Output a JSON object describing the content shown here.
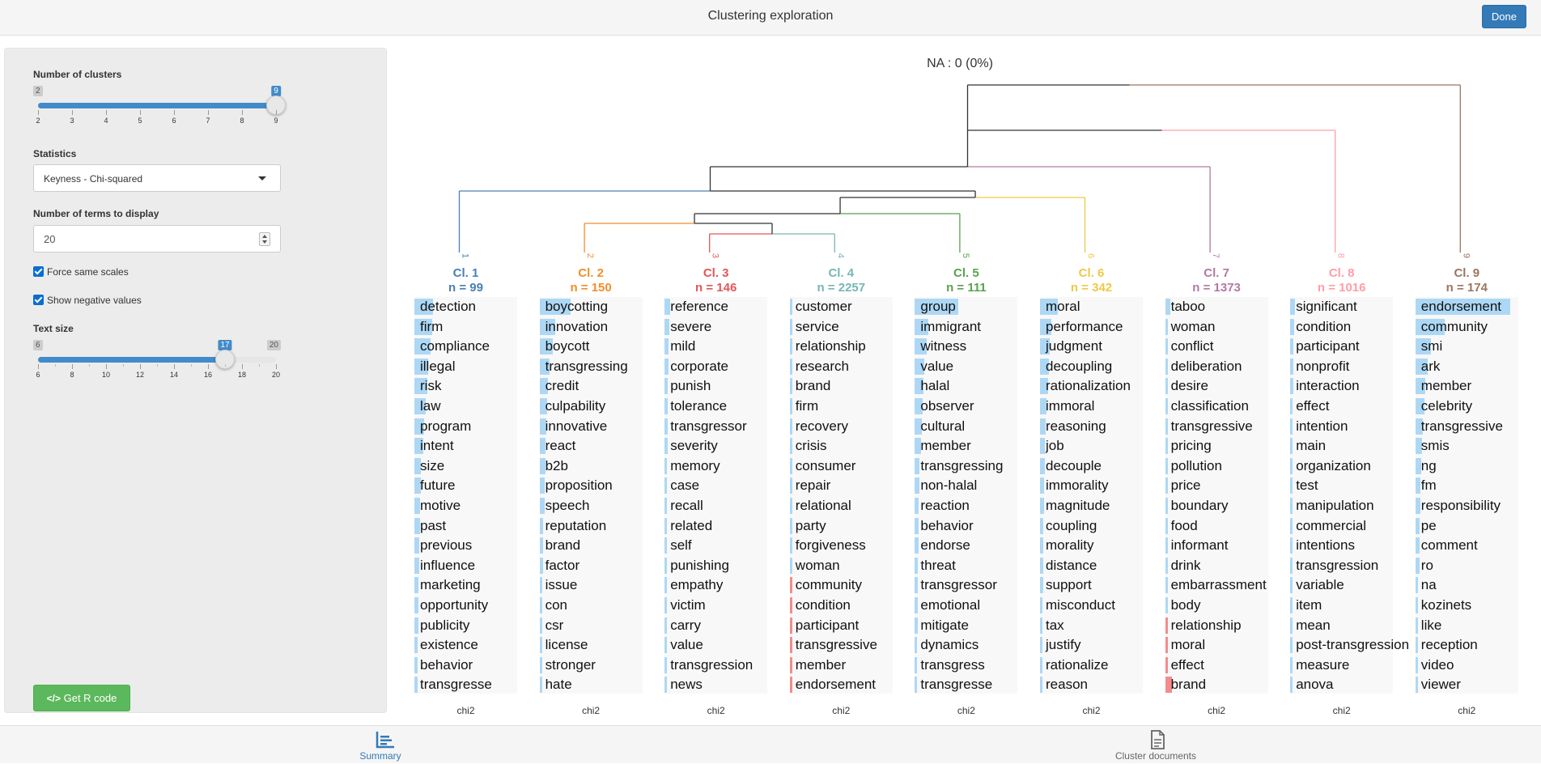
{
  "header": {
    "title": "Clustering exploration",
    "done_label": "Done"
  },
  "sidebar": {
    "num_clusters": {
      "label": "Number of clusters",
      "min": 2,
      "max": 9,
      "value": 9,
      "ticks": [
        "2",
        "3",
        "4",
        "5",
        "6",
        "7",
        "8",
        "9"
      ]
    },
    "statistics": {
      "label": "Statistics",
      "value": "Keyness - Chi-squared"
    },
    "num_terms": {
      "label": "Number of terms to display",
      "value": "20"
    },
    "force_same_scales": {
      "label": "Force same scales",
      "checked": true
    },
    "show_negative": {
      "label": "Show negative values",
      "checked": true
    },
    "text_size": {
      "label": "Text size",
      "min": 6,
      "max": 20,
      "value": 17,
      "ticks": [
        "6",
        "8",
        "10",
        "12",
        "14",
        "16",
        "18",
        "20"
      ]
    },
    "get_r_code_label": "Get R code"
  },
  "main": {
    "na_label": "NA : 0 (0%)",
    "leaf_labels": [
      "1",
      "2",
      "3",
      "4",
      "5",
      "6",
      "7",
      "8",
      "9"
    ],
    "stat_label": "chi2",
    "clusters": [
      {
        "title": "Cl. 1",
        "n": "n = 99",
        "color": "#4a7fb5",
        "terms": [
          "detection",
          "firm",
          "compliance",
          "illegal",
          "risk",
          "law",
          "program",
          "intent",
          "size",
          "future",
          "motive",
          "past",
          "previous",
          "influence",
          "marketing",
          "opportunity",
          "publicity",
          "existence",
          "behavior",
          "transgresse"
        ],
        "scores": [
          0.19,
          0.18,
          0.17,
          0.14,
          0.13,
          0.12,
          0.1,
          0.09,
          0.07,
          0.07,
          0.06,
          0.06,
          0.05,
          0.05,
          0.04,
          0.04,
          0.04,
          0.03,
          0.03,
          0.03
        ]
      },
      {
        "title": "Cl. 2",
        "n": "n = 150",
        "color": "#f28e2b",
        "terms": [
          "boycotting",
          "innovation",
          "boycott",
          "transgressing",
          "credit",
          "culpability",
          "innovative",
          "react",
          "b2b",
          "proposition",
          "speech",
          "reputation",
          "brand",
          "factor",
          "issue",
          "con",
          "csr",
          "license",
          "stronger",
          "hate"
        ],
        "scores": [
          0.32,
          0.16,
          0.14,
          0.1,
          0.09,
          0.08,
          0.07,
          0.06,
          0.06,
          0.05,
          0.05,
          0.04,
          0.04,
          0.04,
          0.03,
          0.03,
          0.03,
          0.03,
          0.02,
          0.02
        ]
      },
      {
        "title": "Cl. 3",
        "n": "n = 146",
        "color": "#e15759",
        "terms": [
          "reference",
          "severe",
          "mild",
          "corporate",
          "punish",
          "tolerance",
          "transgressor",
          "severity",
          "memory",
          "case",
          "recall",
          "related",
          "self",
          "punishing",
          "empathy",
          "victim",
          "carry",
          "value",
          "transgression",
          "news"
        ],
        "scores": [
          0.06,
          0.05,
          0.04,
          0.04,
          0.03,
          0.03,
          0.03,
          0.03,
          0.02,
          0.02,
          0.02,
          0.02,
          0.02,
          0.02,
          0.02,
          0.02,
          0.01,
          0.01,
          0.01,
          0.01
        ]
      },
      {
        "title": "Cl. 4",
        "n": "n = 2257",
        "color": "#76b7b2",
        "terms": [
          "customer",
          "service",
          "relationship",
          "research",
          "brand",
          "firm",
          "recovery",
          "crisis",
          "consumer",
          "repair",
          "relational",
          "party",
          "forgiveness",
          "woman",
          "community",
          "condition",
          "participant",
          "transgressive",
          "member",
          "endorsement"
        ],
        "scores": [
          0.02,
          0.015,
          0.015,
          0.012,
          0.012,
          0.01,
          0.01,
          0.01,
          0.01,
          0.008,
          0.008,
          0.008,
          0.008,
          0.008,
          -0.01,
          -0.01,
          -0.012,
          -0.012,
          -0.015,
          -0.015
        ]
      },
      {
        "title": "Cl. 5",
        "n": "n = 111",
        "color": "#59a14f",
        "terms": [
          "group",
          "immigrant",
          "witness",
          "value",
          "halal",
          "observer",
          "cultural",
          "member",
          "transgressing",
          "non-halal",
          "reaction",
          "behavior",
          "endorse",
          "threat",
          "transgressor",
          "emotional",
          "mitigate",
          "dynamics",
          "transgress",
          "transgresse"
        ],
        "scores": [
          0.45,
          0.14,
          0.12,
          0.1,
          0.09,
          0.08,
          0.07,
          0.06,
          0.05,
          0.05,
          0.04,
          0.04,
          0.04,
          0.03,
          0.03,
          0.03,
          0.03,
          0.02,
          0.02,
          0.02
        ]
      },
      {
        "title": "Cl. 6",
        "n": "n = 342",
        "color": "#edc948",
        "terms": [
          "moral",
          "performance",
          "judgment",
          "decoupling",
          "rationalization",
          "immoral",
          "reasoning",
          "job",
          "decouple",
          "immorality",
          "magnitude",
          "coupling",
          "morality",
          "distance",
          "support",
          "misconduct",
          "tax",
          "justify",
          "rationalize",
          "reason"
        ],
        "scores": [
          0.18,
          0.12,
          0.1,
          0.09,
          0.08,
          0.07,
          0.06,
          0.05,
          0.05,
          0.04,
          0.04,
          0.03,
          0.03,
          0.03,
          0.03,
          0.02,
          0.02,
          0.02,
          0.02,
          0.02
        ]
      },
      {
        "title": "Cl. 7",
        "n": "n = 1373",
        "color": "#b07aa1",
        "terms": [
          "taboo",
          "woman",
          "conflict",
          "deliberation",
          "desire",
          "classification",
          "transgressive",
          "pricing",
          "pollution",
          "price",
          "boundary",
          "food",
          "informant",
          "drink",
          "embarrassment",
          "body",
          "relationship",
          "moral",
          "effect",
          "brand"
        ],
        "scores": [
          0.05,
          0.03,
          0.025,
          0.02,
          0.02,
          0.02,
          0.018,
          0.015,
          0.015,
          0.013,
          0.012,
          0.012,
          0.01,
          0.01,
          0.01,
          0.008,
          -0.02,
          -0.025,
          -0.03,
          -0.07
        ]
      },
      {
        "title": "Cl. 8",
        "n": "n = 1016",
        "color": "#ff9da7",
        "terms": [
          "significant",
          "condition",
          "participant",
          "nonprofit",
          "interaction",
          "effect",
          "intention",
          "main",
          "organization",
          "test",
          "manipulation",
          "commercial",
          "intentions",
          "transgression",
          "variable",
          "item",
          "mean",
          "post-transgression",
          "measure",
          "anova"
        ],
        "scores": [
          0.05,
          0.04,
          0.035,
          0.03,
          0.03,
          0.025,
          0.025,
          0.022,
          0.02,
          0.02,
          0.018,
          0.018,
          0.016,
          0.016,
          0.015,
          0.015,
          0.014,
          0.014,
          0.013,
          0.013
        ]
      },
      {
        "title": "Cl. 9",
        "n": "n = 174",
        "color": "#9c755f",
        "terms": [
          "endorsement",
          "community",
          "smi",
          "ark",
          "member",
          "celebrity",
          "transgressive",
          "smis",
          "ng",
          "fm",
          "responsibility",
          "pe",
          "comment",
          "ro",
          "na",
          "kozinets",
          "like",
          "reception",
          "video",
          "viewer"
        ],
        "scores": [
          0.98,
          0.3,
          0.16,
          0.13,
          0.1,
          0.09,
          0.08,
          0.07,
          0.06,
          0.05,
          0.05,
          0.04,
          0.04,
          0.04,
          0.03,
          0.03,
          0.03,
          0.03,
          0.03,
          0.03
        ]
      }
    ]
  },
  "footer": {
    "summary_label": "Summary",
    "cluster_docs_label": "Cluster documents",
    "active_color": "#337ab7"
  }
}
